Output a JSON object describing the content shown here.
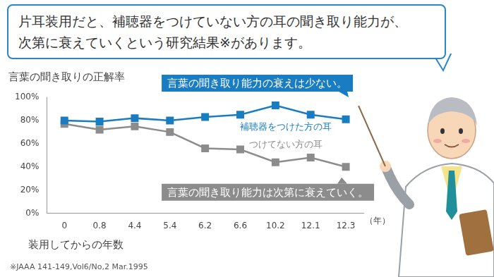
{
  "chart_data": {
    "type": "line",
    "title": [
      "片耳装用だと、補聴器をつけていない方の耳の聞き取り能力が、",
      "次第に衰えていくという研究結果※があります。"
    ],
    "y_label": "言葉の聞き取りの正解率",
    "x_label": "装用してからの年数",
    "x_unit": "（年）",
    "categories": [
      "0",
      "0.8",
      "4.4",
      "5.4",
      "6.2",
      "6.6",
      "10.2",
      "12.1",
      "12.3"
    ],
    "series": [
      {
        "name": "補聴器をつけた方の耳",
        "color": "#1a7cc1",
        "marker": "square",
        "values": [
          80,
          79,
          82,
          80,
          83,
          85,
          93,
          85,
          81
        ]
      },
      {
        "name": "つけてない方の耳",
        "color": "#8c8c8c",
        "marker": "square",
        "values": [
          77,
          72,
          75,
          70,
          56,
          55,
          44,
          48,
          40
        ]
      }
    ],
    "annotations": [
      {
        "text": "言葉の聞き取り能力の衰えは少ない。",
        "series": "補聴器をつけた方の耳"
      },
      {
        "text": "言葉の聞き取り能力は次第に衰えていく。",
        "series": "つけてない方の耳"
      }
    ],
    "source": "※JAAA 141-149,Vol6/No,2 Mar.1995",
    "ylim": [
      0,
      100
    ],
    "yticks": [
      {
        "value": 0,
        "label": "0%"
      },
      {
        "value": 20,
        "label": "20%"
      },
      {
        "value": 40,
        "label": "40%"
      },
      {
        "value": 60,
        "label": "60%"
      },
      {
        "value": 80,
        "label": "80%"
      },
      {
        "value": 100,
        "label": "100%"
      }
    ],
    "grid": false
  }
}
